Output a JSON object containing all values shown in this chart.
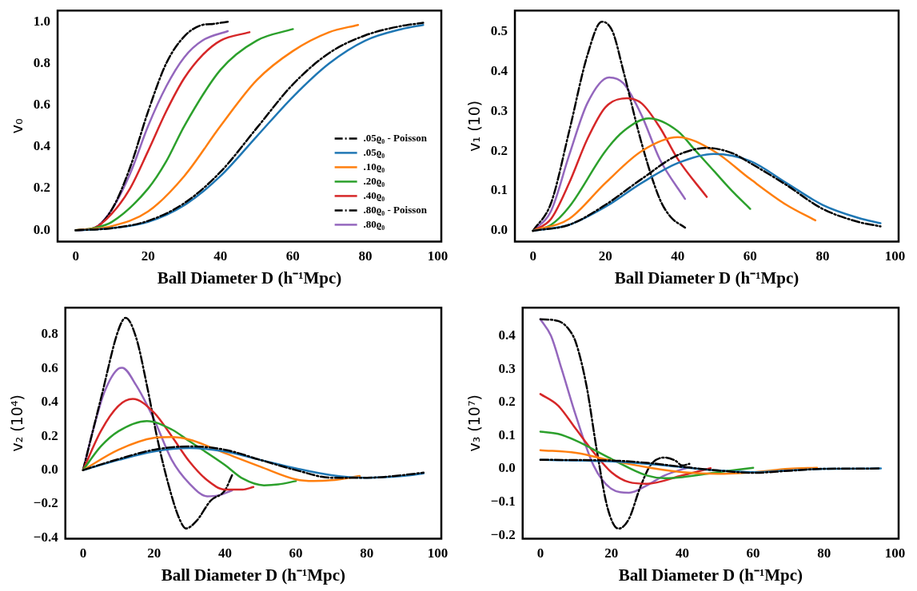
{
  "chart_data": [
    {
      "type": "line",
      "xlabel": "Ball Diameter D (h⁻¹Mpc)",
      "ylabel": "v₀",
      "xlim": [
        -5,
        101
      ],
      "xticks": [
        0,
        20,
        40,
        60,
        80,
        100
      ],
      "ylim": [
        -0.054,
        1.054
      ],
      "yticks": [
        {
          "value": 0,
          "label": "0.0"
        },
        {
          "value": 0.2,
          "label": "0.2"
        },
        {
          "value": 0.4,
          "label": "0.4"
        },
        {
          "value": 0.6,
          "label": "0.6"
        },
        {
          "value": 0.8,
          "label": "0.8"
        },
        {
          "value": 1,
          "label": "1.0"
        }
      ],
      "grid": false,
      "legend": "bottom right",
      "marker": "none",
      "series": [
        {
          "name": ".05ϱ₀ - Poisson",
          "color": "#000000",
          "line_style": "dashed",
          "x": [
            0,
            10,
            20,
            30,
            40,
            50,
            60,
            70,
            80,
            90,
            96
          ],
          "values": [
            0,
            0.01,
            0.045,
            0.13,
            0.28,
            0.49,
            0.7,
            0.85,
            0.935,
            0.98,
            0.995
          ]
        },
        {
          "name": ".05ϱ₀",
          "color": "#1f77b4",
          "x": [
            0,
            10,
            20,
            30,
            40,
            50,
            60,
            70,
            80,
            90,
            96
          ],
          "values": [
            0,
            0.01,
            0.04,
            0.12,
            0.26,
            0.45,
            0.64,
            0.8,
            0.91,
            0.965,
            0.985
          ]
        },
        {
          "name": ".10ϱ₀",
          "color": "#ff7f0e",
          "x": [
            0,
            10,
            20,
            30,
            40,
            50,
            60,
            70,
            78
          ],
          "values": [
            0,
            0.02,
            0.09,
            0.26,
            0.5,
            0.72,
            0.86,
            0.95,
            0.985
          ]
        },
        {
          "name": ".20ϱ₀",
          "color": "#2ca02c",
          "x": [
            0,
            5,
            10,
            20,
            25,
            30,
            40,
            50,
            60
          ],
          "values": [
            0,
            0.01,
            0.04,
            0.2,
            0.33,
            0.5,
            0.77,
            0.91,
            0.965
          ]
        },
        {
          "name": ".40ϱ₀",
          "color": "#d62728",
          "x": [
            0,
            5,
            10,
            15,
            20,
            25,
            30,
            35,
            40,
            48
          ],
          "values": [
            0,
            0.01,
            0.08,
            0.2,
            0.38,
            0.57,
            0.73,
            0.84,
            0.91,
            0.95
          ]
        },
        {
          "name": ".80ϱ₀ - Poisson",
          "color": "#000000",
          "line_style": "dashed",
          "x": [
            0,
            5,
            10,
            15,
            20,
            25,
            30,
            35,
            38,
            40,
            42
          ],
          "values": [
            0,
            0.01,
            0.1,
            0.3,
            0.57,
            0.8,
            0.93,
            0.985,
            0.99,
            0.995,
            1.0
          ]
        },
        {
          "name": ".80ϱ₀",
          "color": "#9467bd",
          "x": [
            0,
            5,
            10,
            15,
            20,
            25,
            30,
            35,
            42
          ],
          "values": [
            0,
            0.01,
            0.1,
            0.27,
            0.5,
            0.69,
            0.83,
            0.91,
            0.955
          ]
        }
      ]
    },
    {
      "type": "line",
      "xlabel": "Ball Diameter D (h⁻¹Mpc)",
      "ylabel": "v₁ (10)",
      "xlim": [
        -5,
        101
      ],
      "xticks": [
        0,
        20,
        40,
        60,
        80,
        100
      ],
      "ylim": [
        -0.027,
        0.553
      ],
      "yticks": [
        {
          "value": 0,
          "label": "0.0"
        },
        {
          "value": 0.1,
          "label": "0.1"
        },
        {
          "value": 0.2,
          "label": "0.2"
        },
        {
          "value": 0.3,
          "label": "0.3"
        },
        {
          "value": 0.4,
          "label": "0.4"
        },
        {
          "value": 0.5,
          "label": "0.5"
        }
      ],
      "grid": false,
      "marker": "none",
      "series": [
        {
          "color": "#000000",
          "line_style": "dashed",
          "x": [
            0,
            10,
            20,
            30,
            40,
            48,
            55,
            60,
            70,
            80,
            90,
            96
          ],
          "values": [
            0,
            0.015,
            0.065,
            0.13,
            0.19,
            0.208,
            0.195,
            0.17,
            0.115,
            0.055,
            0.022,
            0.011
          ]
        },
        {
          "color": "#1f77b4",
          "x": [
            0,
            10,
            20,
            30,
            40,
            50,
            60,
            70,
            80,
            90,
            96
          ],
          "values": [
            0,
            0.015,
            0.06,
            0.12,
            0.17,
            0.193,
            0.175,
            0.12,
            0.065,
            0.032,
            0.019
          ]
        },
        {
          "color": "#ff7f0e",
          "x": [
            0,
            10,
            20,
            30,
            40,
            50,
            60,
            70,
            78
          ],
          "values": [
            0,
            0.03,
            0.12,
            0.2,
            0.235,
            0.2,
            0.13,
            0.065,
            0.026
          ]
        },
        {
          "color": "#2ca02c",
          "x": [
            0,
            5,
            10,
            20,
            25,
            32,
            40,
            45,
            50,
            55,
            60
          ],
          "values": [
            0,
            0.015,
            0.06,
            0.2,
            0.25,
            0.282,
            0.25,
            0.2,
            0.15,
            0.1,
            0.055
          ]
        },
        {
          "color": "#d62728",
          "x": [
            0,
            5,
            10,
            15,
            20,
            26,
            30,
            35,
            40,
            48
          ],
          "values": [
            0,
            0.03,
            0.12,
            0.23,
            0.31,
            0.333,
            0.32,
            0.26,
            0.18,
            0.085
          ]
        },
        {
          "color": "#000000",
          "line_style": "dashed",
          "x": [
            0,
            5,
            10,
            15,
            19,
            22,
            25,
            30,
            35,
            38,
            42
          ],
          "values": [
            0,
            0.07,
            0.25,
            0.44,
            0.525,
            0.5,
            0.4,
            0.22,
            0.08,
            0.035,
            0.008
          ]
        },
        {
          "color": "#9467bd",
          "x": [
            0,
            5,
            10,
            15,
            21,
            25,
            30,
            35,
            42
          ],
          "values": [
            0,
            0.05,
            0.19,
            0.32,
            0.385,
            0.37,
            0.29,
            0.18,
            0.08
          ]
        }
      ]
    },
    {
      "type": "line",
      "xlabel": "Ball Diameter D (h⁻¹Mpc)",
      "ylabel": "v₂ (10⁴)",
      "xlim": [
        -5,
        101
      ],
      "xticks": [
        0,
        20,
        40,
        60,
        80,
        100
      ],
      "ylim": [
        -0.405,
        0.96
      ],
      "yticks": [
        {
          "value": -0.4,
          "label": "−0.4"
        },
        {
          "value": -0.2,
          "label": "−0.2"
        },
        {
          "value": 0,
          "label": "0.0"
        },
        {
          "value": 0.2,
          "label": "0.2"
        },
        {
          "value": 0.4,
          "label": "0.4"
        },
        {
          "value": 0.6,
          "label": "0.6"
        },
        {
          "value": 0.8,
          "label": "0.8"
        }
      ],
      "grid": false,
      "marker": "none",
      "series": [
        {
          "color": "#000000",
          "line_style": "dashed",
          "x": [
            0,
            10,
            20,
            30,
            40,
            50,
            60,
            70,
            80,
            90,
            96
          ],
          "values": [
            0,
            0.065,
            0.12,
            0.14,
            0.12,
            0.06,
            0,
            -0.045,
            -0.045,
            -0.03,
            -0.015
          ]
        },
        {
          "color": "#1f77b4",
          "x": [
            0,
            10,
            20,
            30,
            40,
            50,
            60,
            70,
            80,
            90,
            96
          ],
          "values": [
            0,
            0.06,
            0.11,
            0.13,
            0.11,
            0.06,
            0.01,
            -0.03,
            -0.045,
            -0.035,
            -0.02
          ]
        },
        {
          "color": "#ff7f0e",
          "x": [
            0,
            10,
            20,
            25,
            30,
            40,
            50,
            60,
            65,
            70,
            78
          ],
          "values": [
            0,
            0.12,
            0.19,
            0.195,
            0.18,
            0.1,
            0.02,
            -0.055,
            -0.065,
            -0.06,
            -0.035
          ]
        },
        {
          "color": "#2ca02c",
          "x": [
            0,
            5,
            10,
            18,
            25,
            30,
            40,
            45,
            51,
            55,
            60
          ],
          "values": [
            0,
            0.14,
            0.23,
            0.29,
            0.24,
            0.17,
            0.03,
            -0.05,
            -0.09,
            -0.085,
            -0.065
          ]
        },
        {
          "color": "#d62728",
          "x": [
            0,
            5,
            10,
            14,
            20,
            25,
            30,
            35,
            40,
            45,
            48
          ],
          "values": [
            0,
            0.23,
            0.38,
            0.42,
            0.34,
            0.2,
            0.05,
            -0.06,
            -0.115,
            -0.115,
            -0.1
          ]
        },
        {
          "color": "#000000",
          "line_style": "dashed",
          "x": [
            0,
            5,
            10,
            12,
            15,
            18,
            21,
            24,
            27,
            29,
            32,
            36,
            40,
            42
          ],
          "values": [
            0,
            0.42,
            0.83,
            0.9,
            0.78,
            0.5,
            0.18,
            -0.08,
            -0.28,
            -0.345,
            -0.3,
            -0.18,
            -0.12,
            -0.03
          ]
        },
        {
          "color": "#9467bd",
          "x": [
            0,
            3,
            6,
            10,
            11,
            15,
            20,
            25,
            30,
            35,
            38,
            42
          ],
          "values": [
            0,
            0.25,
            0.46,
            0.6,
            0.605,
            0.5,
            0.3,
            0.06,
            -0.08,
            -0.155,
            -0.15,
            -0.12
          ]
        }
      ]
    },
    {
      "type": "line",
      "xlabel": "Ball Diameter D (h⁻¹Mpc)",
      "ylabel": "v₃ (10⁷)",
      "xlim": [
        -5,
        101
      ],
      "xticks": [
        0,
        20,
        40,
        60,
        80,
        100
      ],
      "ylim": [
        -0.21,
        0.485
      ],
      "yticks": [
        {
          "value": -0.2,
          "label": "−0.2"
        },
        {
          "value": -0.1,
          "label": "−0.1"
        },
        {
          "value": 0,
          "label": "0.0"
        },
        {
          "value": 0.1,
          "label": "0.1"
        },
        {
          "value": 0.2,
          "label": "0.2"
        },
        {
          "value": 0.3,
          "label": "0.3"
        },
        {
          "value": 0.4,
          "label": "0.4"
        }
      ],
      "grid": false,
      "marker": "none",
      "series": [
        {
          "color": "#000000",
          "line_style": "dashed",
          "x": [
            0,
            20,
            30,
            40,
            50,
            60,
            70,
            80,
            96
          ],
          "values": [
            0.027,
            0.025,
            0.018,
            0.006,
            -0.005,
            -0.012,
            -0.006,
            0,
            0.001
          ]
        },
        {
          "color": "#1f77b4",
          "x": [
            0,
            20,
            30,
            40,
            50,
            60,
            70,
            80,
            96
          ],
          "values": [
            0.027,
            0.022,
            0.015,
            0.005,
            -0.005,
            -0.01,
            -0.005,
            0,
            0.001
          ]
        },
        {
          "color": "#ff7f0e",
          "x": [
            0,
            10,
            20,
            30,
            40,
            50,
            60,
            70,
            78
          ],
          "values": [
            0.056,
            0.048,
            0.025,
            0.005,
            -0.01,
            -0.015,
            -0.01,
            0,
            0.003
          ]
        },
        {
          "color": "#2ca02c",
          "x": [
            0,
            5,
            10,
            20,
            30,
            35,
            40,
            50,
            60
          ],
          "values": [
            0.112,
            0.105,
            0.085,
            0.03,
            -0.02,
            -0.028,
            -0.025,
            -0.01,
            0.003
          ]
        },
        {
          "color": "#d62728",
          "x": [
            0,
            5,
            10,
            15,
            20,
            25,
            30,
            40,
            48
          ],
          "values": [
            0.225,
            0.19,
            0.12,
            0.05,
            -0.01,
            -0.04,
            -0.045,
            -0.02,
            0.002
          ]
        },
        {
          "color": "#000000",
          "line_style": "dashed",
          "x": [
            0,
            5,
            8,
            10,
            13,
            16,
            19,
            22,
            25,
            28,
            31,
            35,
            38,
            40,
            42
          ],
          "values": [
            0.45,
            0.445,
            0.42,
            0.38,
            0.25,
            0.05,
            -0.12,
            -0.18,
            -0.15,
            -0.06,
            0.01,
            0.034,
            0.025,
            0.01,
            0.015
          ]
        },
        {
          "color": "#9467bd",
          "x": [
            0,
            3,
            6,
            10,
            15,
            20,
            25,
            30,
            35,
            42
          ],
          "values": [
            0.45,
            0.4,
            0.3,
            0.16,
            0.01,
            -0.06,
            -0.072,
            -0.05,
            -0.02,
            0.005
          ]
        }
      ]
    }
  ]
}
